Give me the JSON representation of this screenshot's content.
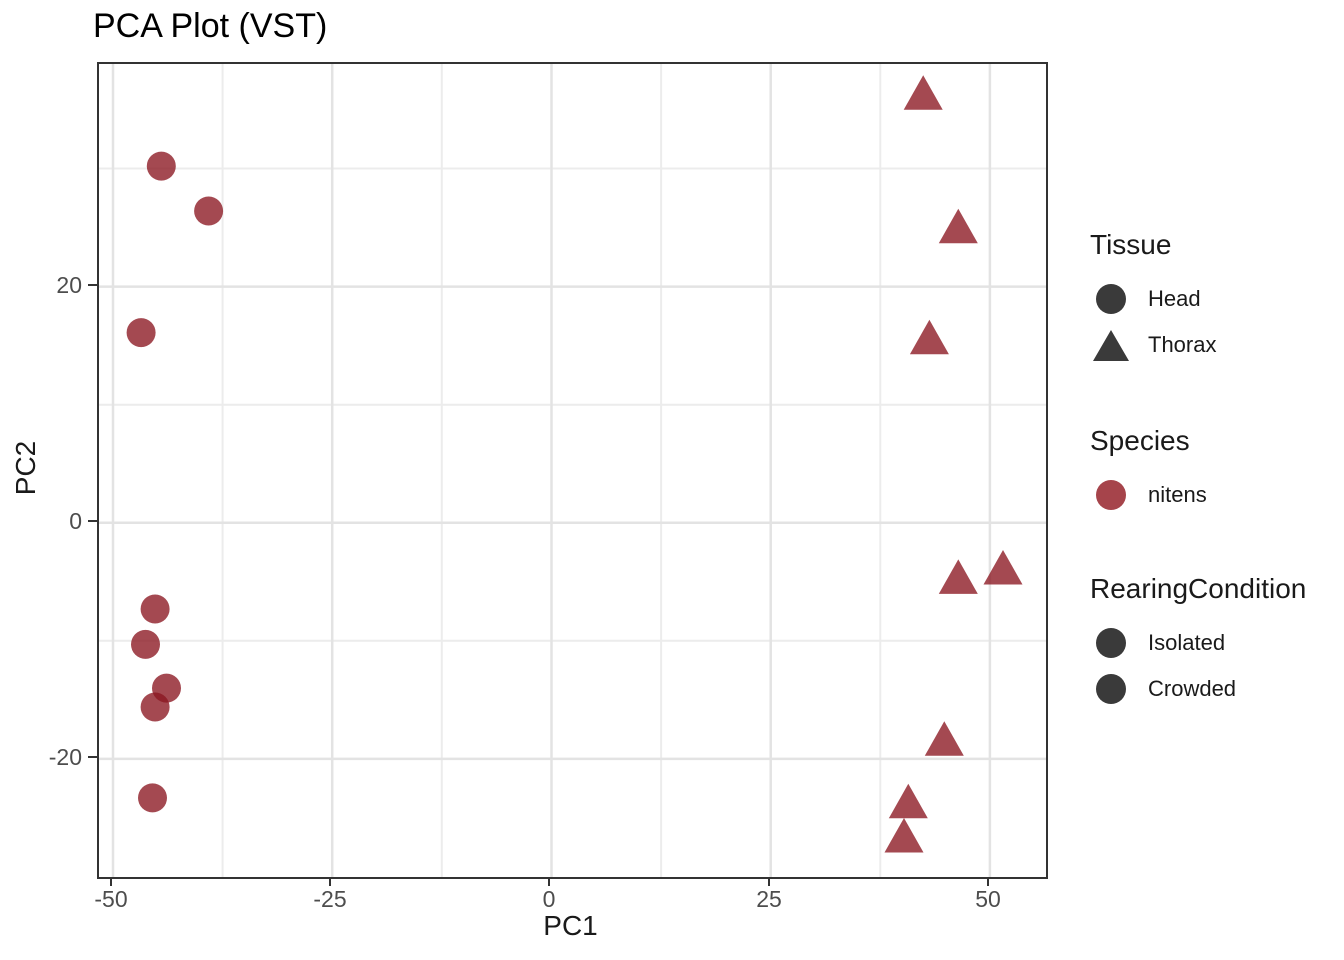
{
  "chart_data": {
    "type": "scatter",
    "title": "PCA Plot (VST)",
    "xlabel": "PC1",
    "ylabel": "PC2",
    "xlim": [
      -51.6,
      56.4
    ],
    "ylim": [
      -30,
      38.85
    ],
    "x_ticks": [
      -50,
      -25,
      0,
      25,
      50
    ],
    "y_ticks": [
      20,
      0,
      -20
    ],
    "x_minor_ticks": [
      -37.5,
      -12.5,
      12.5,
      37.5
    ],
    "y_minor_ticks": [
      30,
      10,
      -10
    ],
    "grid": true,
    "legend_position": "right",
    "background_color": "#FFFFFF",
    "panel_border_color": "#333333",
    "grid_major_color": "#E3E3E3",
    "grid_minor_color": "#ECECEC",
    "point_color": "#8B1620",
    "point_opacity": 0.78,
    "series": [
      {
        "name": "Head",
        "shape": "circle",
        "species": "nitens",
        "points": [
          [
            -44.5,
            30.2
          ],
          [
            -39.1,
            26.4
          ],
          [
            -46.8,
            16.1
          ],
          [
            -45.2,
            -7.3
          ],
          [
            -46.3,
            -10.3
          ],
          [
            -43.9,
            -14.0
          ],
          [
            -45.2,
            -15.6
          ],
          [
            -45.5,
            -23.3
          ]
        ]
      },
      {
        "name": "Thorax",
        "shape": "triangle",
        "species": "nitens",
        "points": [
          [
            42.4,
            36.2
          ],
          [
            46.4,
            24.9
          ],
          [
            43.1,
            15.5
          ],
          [
            46.4,
            -4.8
          ],
          [
            51.5,
            -4.0
          ],
          [
            44.8,
            -18.5
          ],
          [
            40.7,
            -23.8
          ],
          [
            40.2,
            -26.7
          ]
        ]
      }
    ]
  },
  "legend": {
    "groups": [
      {
        "title": "Tissue",
        "items": [
          {
            "label": "Head",
            "shape": "circle",
            "color": "#3A3A3A"
          },
          {
            "label": "Thorax",
            "shape": "triangle",
            "color": "#3A3A3A"
          }
        ]
      },
      {
        "title": "Species",
        "items": [
          {
            "label": "nitens",
            "shape": "circle",
            "color": "#A6444B"
          }
        ]
      },
      {
        "title": "RearingCondition",
        "items": [
          {
            "label": "Isolated",
            "shape": "circle",
            "color": "#3A3A3A"
          },
          {
            "label": "Crowded",
            "shape": "circle",
            "color": "#3A3A3A"
          }
        ]
      }
    ]
  }
}
